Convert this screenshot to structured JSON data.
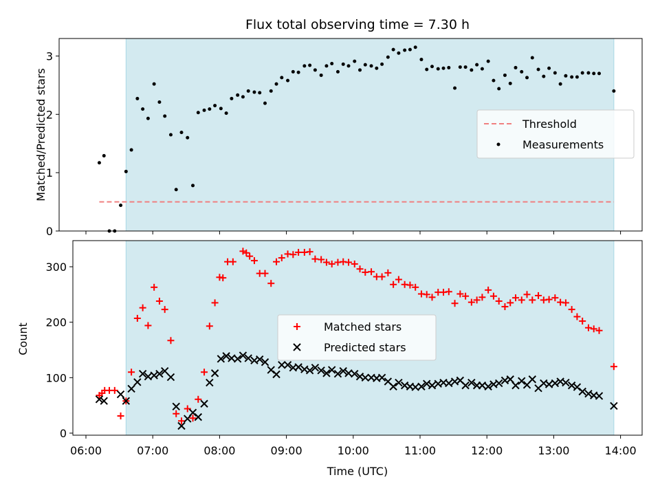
{
  "colors": {
    "shade": "#d3eaf0",
    "shade_edge": "#a9d6e5",
    "threshold": "#f07f7f",
    "matched": "#ff0000",
    "predicted": "#000000",
    "measurement": "#000000"
  },
  "chart_data": [
    {
      "type": "scatter",
      "title": "Flux total observing time = 7.30 h",
      "xlabel": "",
      "ylabel": "Matched/Predicted stars",
      "xlim": [
        5.97,
        14.34
      ],
      "ylim": [
        0,
        3.3
      ],
      "yticks": [
        0,
        1,
        2,
        3
      ],
      "grid": false,
      "legend_position": "center-right",
      "shaded_interval": [
        6.6,
        13.9
      ],
      "threshold": {
        "name": "Threshold",
        "value": 0.5,
        "x_range": [
          6.2,
          13.9
        ]
      },
      "series": [
        {
          "name": "Measurements",
          "x": [
            6.2,
            6.27,
            6.35,
            6.43,
            6.52,
            6.6,
            6.68,
            6.77,
            6.85,
            6.93,
            7.02,
            7.1,
            7.18,
            7.27,
            7.35,
            7.43,
            7.52,
            7.6,
            7.68,
            7.77,
            7.85,
            7.93,
            8.02,
            8.1,
            8.18,
            8.27,
            8.35,
            8.43,
            8.52,
            8.6,
            8.68,
            8.77,
            8.85,
            8.93,
            9.02,
            9.1,
            9.18,
            9.27,
            9.35,
            9.43,
            9.52,
            9.6,
            9.68,
            9.77,
            9.85,
            9.93,
            10.02,
            10.1,
            10.18,
            10.27,
            10.35,
            10.43,
            10.52,
            10.6,
            10.68,
            10.77,
            10.85,
            10.93,
            11.02,
            11.1,
            11.18,
            11.27,
            11.35,
            11.43,
            11.52,
            11.6,
            11.68,
            11.77,
            11.85,
            11.93,
            12.02,
            12.1,
            12.18,
            12.27,
            12.35,
            12.43,
            12.52,
            12.6,
            12.68,
            12.77,
            12.85,
            12.93,
            13.02,
            13.1,
            13.18,
            13.27,
            13.35,
            13.43,
            13.52,
            13.6,
            13.68,
            13.9
          ],
          "y": [
            1.17,
            1.29,
            0.0,
            0.0,
            0.44,
            1.02,
            1.39,
            2.27,
            2.09,
            1.93,
            2.52,
            2.21,
            1.97,
            1.65,
            0.71,
            1.69,
            1.6,
            0.78,
            2.03,
            2.07,
            2.09,
            2.15,
            2.1,
            2.02,
            2.27,
            2.33,
            2.3,
            2.4,
            2.38,
            2.37,
            2.19,
            2.4,
            2.52,
            2.63,
            2.58,
            2.73,
            2.72,
            2.83,
            2.84,
            2.76,
            2.67,
            2.83,
            2.87,
            2.73,
            2.86,
            2.83,
            2.91,
            2.76,
            2.85,
            2.83,
            2.79,
            2.86,
            2.98,
            3.11,
            3.05,
            3.1,
            3.11,
            3.15,
            2.94,
            2.77,
            2.82,
            2.78,
            2.79,
            2.8,
            2.45,
            2.81,
            2.81,
            2.76,
            2.85,
            2.78,
            2.91,
            2.58,
            2.44,
            2.67,
            2.53,
            2.8,
            2.73,
            2.63,
            2.97,
            2.77,
            2.65,
            2.79,
            2.71,
            2.52,
            2.66,
            2.64,
            2.64,
            2.71,
            2.71,
            2.7,
            2.7,
            2.4
          ]
        }
      ]
    },
    {
      "type": "scatter",
      "title": "",
      "xlabel": "Time (UTC)",
      "ylabel": "Count",
      "xlim": [
        5.97,
        14.34
      ],
      "ylim": [
        -5,
        345
      ],
      "yticks": [
        0,
        100,
        200,
        300
      ],
      "xticks": [
        6,
        7,
        8,
        9,
        10,
        11,
        12,
        13,
        14
      ],
      "xtick_labels": [
        "06:00",
        "07:00",
        "08:00",
        "09:00",
        "10:00",
        "11:00",
        "12:00",
        "13:00",
        "14:00"
      ],
      "grid": false,
      "legend_position": "center",
      "shaded_interval": [
        6.6,
        13.9
      ],
      "series": [
        {
          "name": "Matched stars",
          "x": [
            6.2,
            6.24,
            6.28,
            6.35,
            6.43,
            6.52,
            6.6,
            6.68,
            6.77,
            6.85,
            6.93,
            7.02,
            7.1,
            7.18,
            7.27,
            7.35,
            7.43,
            7.52,
            7.6,
            7.68,
            7.77,
            7.85,
            7.93,
            8.0,
            8.05,
            8.12,
            8.2,
            8.35,
            8.4,
            8.45,
            8.52,
            8.6,
            8.68,
            8.77,
            8.85,
            8.93,
            9.02,
            9.1,
            9.18,
            9.27,
            9.35,
            9.43,
            9.52,
            9.6,
            9.68,
            9.77,
            9.85,
            9.93,
            10.02,
            10.1,
            10.18,
            10.27,
            10.35,
            10.43,
            10.52,
            10.6,
            10.68,
            10.77,
            10.85,
            10.93,
            11.02,
            11.1,
            11.18,
            11.27,
            11.35,
            11.43,
            11.52,
            11.6,
            11.68,
            11.77,
            11.85,
            11.93,
            12.02,
            12.1,
            12.18,
            12.27,
            12.35,
            12.43,
            12.52,
            12.6,
            12.68,
            12.77,
            12.85,
            12.93,
            13.02,
            13.1,
            13.18,
            13.27,
            13.35,
            13.43,
            13.52,
            13.6,
            13.68,
            13.9
          ],
          "y": [
            68,
            72,
            77,
            77,
            77,
            31,
            58,
            110,
            207,
            226,
            194,
            263,
            238,
            223,
            167,
            35,
            22,
            44,
            27,
            61,
            110,
            193,
            235,
            281,
            280,
            309,
            309,
            328,
            325,
            319,
            311,
            288,
            288,
            270,
            309,
            316,
            323,
            322,
            326,
            326,
            327,
            314,
            313,
            308,
            305,
            308,
            309,
            308,
            305,
            296,
            290,
            291,
            282,
            282,
            289,
            268,
            277,
            268,
            267,
            263,
            251,
            250,
            245,
            254,
            254,
            255,
            234,
            251,
            247,
            236,
            240,
            245,
            258,
            247,
            238,
            228,
            235,
            244,
            240,
            250,
            240,
            248,
            240,
            241,
            244,
            236,
            235,
            223,
            210,
            202,
            190,
            188,
            185,
            120
          ]
        },
        {
          "name": "Predicted stars",
          "x": [
            6.2,
            6.27,
            6.52,
            6.6,
            6.68,
            6.77,
            6.85,
            6.93,
            7.02,
            7.1,
            7.18,
            7.27,
            7.35,
            7.43,
            7.52,
            7.6,
            7.68,
            7.77,
            7.85,
            7.93,
            8.02,
            8.1,
            8.18,
            8.27,
            8.35,
            8.43,
            8.52,
            8.6,
            8.68,
            8.77,
            8.85,
            8.93,
            9.02,
            9.1,
            9.18,
            9.27,
            9.35,
            9.43,
            9.52,
            9.6,
            9.68,
            9.77,
            9.85,
            9.93,
            10.02,
            10.1,
            10.18,
            10.27,
            10.35,
            10.43,
            10.52,
            10.6,
            10.68,
            10.77,
            10.85,
            10.93,
            11.02,
            11.1,
            11.18,
            11.27,
            11.35,
            11.43,
            11.52,
            11.6,
            11.68,
            11.77,
            11.85,
            11.93,
            12.02,
            12.1,
            12.18,
            12.27,
            12.35,
            12.43,
            12.52,
            12.6,
            12.68,
            12.77,
            12.85,
            12.93,
            13.02,
            13.1,
            13.18,
            13.27,
            13.35,
            13.43,
            13.52,
            13.6,
            13.68,
            13.9
          ],
          "y": [
            61,
            58,
            70,
            58,
            80,
            92,
            107,
            102,
            104,
            107,
            112,
            101,
            48,
            13,
            26,
            37,
            29,
            53,
            91,
            108,
            134,
            139,
            135,
            134,
            140,
            135,
            131,
            133,
            128,
            114,
            106,
            123,
            123,
            118,
            119,
            115,
            113,
            118,
            113,
            108,
            114,
            107,
            112,
            108,
            107,
            102,
            100,
            100,
            99,
            100,
            93,
            84,
            91,
            86,
            84,
            83,
            84,
            89,
            86,
            89,
            91,
            90,
            93,
            95,
            86,
            91,
            86,
            86,
            84,
            88,
            90,
            95,
            97,
            86,
            94,
            87,
            97,
            81,
            90,
            88,
            90,
            93,
            91,
            86,
            83,
            75,
            71,
            68,
            67,
            49
          ]
        }
      ]
    }
  ]
}
